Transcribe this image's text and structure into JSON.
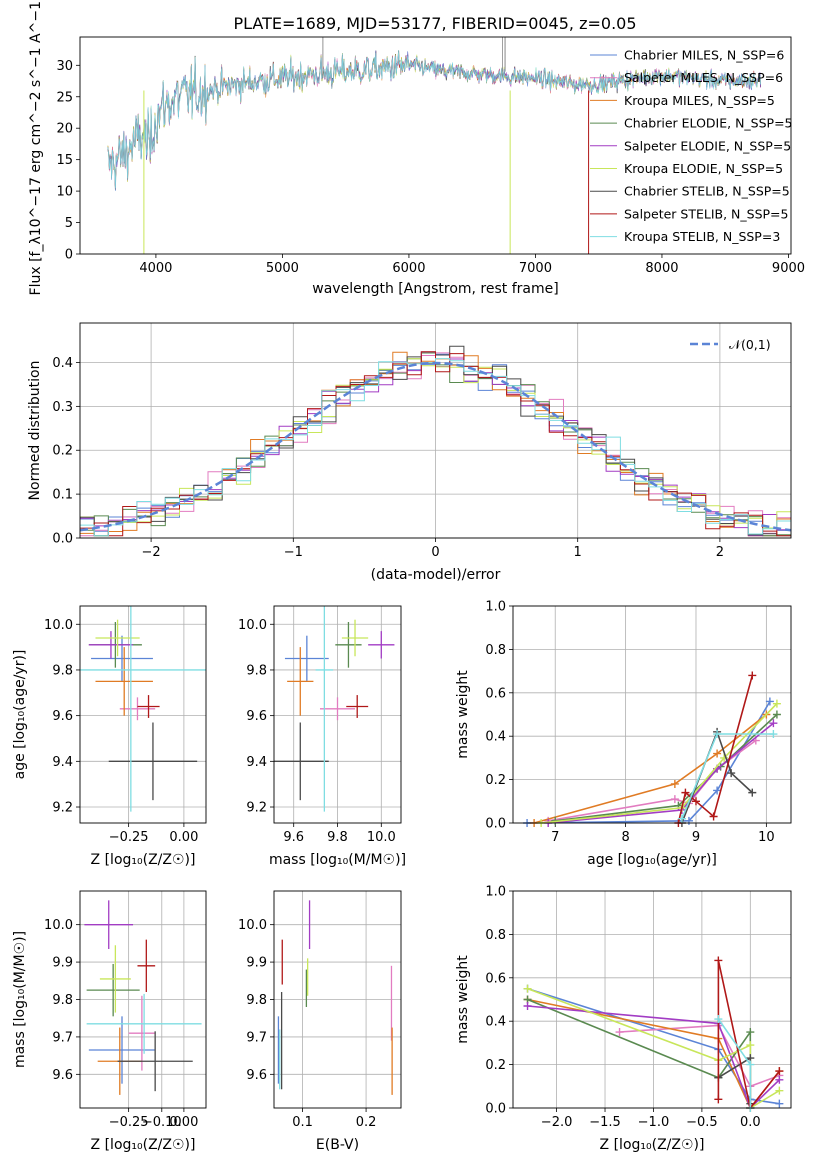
{
  "title": "PLATE=1689, MJD=53177, FIBERID=0045, z=0.05",
  "colors": {
    "chabrier_miles": "#5b84d6",
    "salpeter_miles": "#e27cc0",
    "kroupa_miles": "#e07b24",
    "chabrier_elodie": "#5a8a50",
    "salpeter_elodie": "#a23cc4",
    "kroupa_elodie": "#c8e65a",
    "chabrier_stelib": "#4a4a4a",
    "salpeter_stelib": "#b01818",
    "kroupa_stelib": "#7fdde2"
  },
  "chart_data": [
    {
      "id": "spectrum",
      "type": "line",
      "title": "PLATE=1689, MJD=53177, FIBERID=0045, z=0.05",
      "xlabel": "wavelength [Angstrom, rest frame]",
      "ylabel": "Flux [f_λ10^−17 erg cm^−2 s^−1 A^−1]",
      "xlim": [
        3400,
        9020
      ],
      "ylim": [
        0,
        34.5
      ],
      "xticks": [
        "4000",
        "5000",
        "6000",
        "7000",
        "8000",
        "9000"
      ],
      "yticks": [
        "0",
        "5",
        "10",
        "15",
        "20",
        "25",
        "30"
      ],
      "continuum": {
        "x": [
          3620,
          3700,
          3800,
          3900,
          3950,
          4000,
          4100,
          4200,
          4300,
          4500,
          4800,
          5000,
          5200,
          5500,
          5800,
          6000,
          6300,
          6600,
          7000,
          7300,
          7500,
          7800,
          8000,
          8200,
          8500,
          8780
        ],
        "y": [
          14,
          15,
          17,
          19,
          17,
          22,
          24,
          25,
          25.5,
          26.5,
          27.5,
          28,
          28.5,
          29,
          29.5,
          30,
          29,
          28.5,
          28,
          27,
          27,
          28,
          28.5,
          28,
          27.5,
          27.5
        ]
      },
      "legend_loc": "upper right",
      "series": [
        {
          "name": "Chabrier MILES, N_SSP=6",
          "color_key": "chabrier_miles"
        },
        {
          "name": "Salpeter MILES, N_SSP=6",
          "color_key": "salpeter_miles"
        },
        {
          "name": "Kroupa MILES, N_SSP=5",
          "color_key": "kroupa_miles"
        },
        {
          "name": "Chabrier ELODIE, N_SSP=5",
          "color_key": "chabrier_elodie"
        },
        {
          "name": "Salpeter ELODIE, N_SSP=5",
          "color_key": "salpeter_elodie"
        },
        {
          "name": "Kroupa ELODIE, N_SSP=5",
          "color_key": "kroupa_elodie"
        },
        {
          "name": "Chabrier STELIB, N_SSP=5",
          "color_key": "chabrier_stelib"
        },
        {
          "name": "Salpeter STELIB, N_SSP=5",
          "color_key": "salpeter_stelib"
        },
        {
          "name": "Kroupa STELIB, N_SSP=3",
          "color_key": "kroupa_stelib"
        }
      ]
    },
    {
      "id": "residuals",
      "type": "histogram",
      "xlabel": "(data-model)/error",
      "ylabel": "Normed distribution",
      "xlim": [
        -2.5,
        2.5
      ],
      "ylim": [
        0,
        0.49
      ],
      "xticks": [
        "−2",
        "−1",
        "0",
        "1",
        "2"
      ],
      "yticks": [
        "0.0",
        "0.1",
        "0.2",
        "0.3",
        "0.4"
      ],
      "bin_width": 0.1,
      "reference": {
        "name": "𝒩(0,1)",
        "mean": 0,
        "sigma": 1,
        "color": "#5b84d6"
      },
      "series_color_keys": [
        "chabrier_miles",
        "salpeter_miles",
        "kroupa_miles",
        "chabrier_elodie",
        "salpeter_elodie",
        "kroupa_elodie",
        "chabrier_stelib",
        "salpeter_stelib",
        "kroupa_stelib"
      ]
    },
    {
      "id": "age_vs_Z",
      "type": "errorbar",
      "xlabel": "Z [log₁₀(Z/Z☉)]",
      "ylabel": "age  [log₁₀(age/yr)]",
      "xlim": [
        -0.47,
        0.1
      ],
      "ylim": [
        9.13,
        10.08
      ],
      "xticks": [
        -0.25,
        0.0
      ],
      "xticklabels": [
        "−0.25",
        "0.00"
      ],
      "yticks": [
        9.2,
        9.4,
        9.6,
        9.8,
        10.0
      ],
      "yticklabels": [
        "9.2",
        "9.4",
        "9.6",
        "9.8",
        "10.0"
      ],
      "points": [
        {
          "c": "chabrier_miles",
          "x": -0.28,
          "xe": 0.14,
          "y": 9.85,
          "ye": 0.1
        },
        {
          "c": "salpeter_miles",
          "x": -0.21,
          "xe": 0.08,
          "y": 9.63,
          "ye": 0.05
        },
        {
          "c": "kroupa_miles",
          "x": -0.27,
          "xe": 0.13,
          "y": 9.75,
          "ye": 0.15
        },
        {
          "c": "chabrier_elodie",
          "x": -0.31,
          "xe": 0.12,
          "y": 9.91,
          "ye": 0.1
        },
        {
          "c": "salpeter_elodie",
          "x": -0.33,
          "xe": 0.1,
          "y": 9.91,
          "ye": 0.06
        },
        {
          "c": "kroupa_elodie",
          "x": -0.3,
          "xe": 0.1,
          "y": 9.94,
          "ye": 0.08
        },
        {
          "c": "chabrier_stelib",
          "x": -0.14,
          "xe": 0.2,
          "y": 9.4,
          "ye": 0.17
        },
        {
          "c": "salpeter_stelib",
          "x": -0.16,
          "xe": 0.05,
          "y": 9.64,
          "ye": 0.05
        },
        {
          "c": "kroupa_stelib",
          "x": -0.24,
          "xe": 0.34,
          "y": 9.8,
          "ye": 0.62
        }
      ]
    },
    {
      "id": "age_vs_mass",
      "type": "errorbar",
      "xlabel": "mass [log₁₀(M/M☉)]",
      "ylabel": "",
      "xlim": [
        9.51,
        10.09
      ],
      "ylim": [
        9.13,
        10.08
      ],
      "xticks": [
        9.6,
        9.8,
        10.0
      ],
      "xticklabels": [
        "9.6",
        "9.8",
        "10.0"
      ],
      "yticks": [
        9.2,
        9.4,
        9.6,
        9.8,
        10.0
      ],
      "yticklabels": [
        "9.2",
        "9.4",
        "9.6",
        "9.8",
        "10.0"
      ],
      "points": [
        {
          "c": "chabrier_miles",
          "x": 9.66,
          "xe": 0.1,
          "y": 9.85,
          "ye": 0.1
        },
        {
          "c": "salpeter_miles",
          "x": 9.8,
          "xe": 0.08,
          "y": 9.63,
          "ye": 0.05
        },
        {
          "c": "kroupa_miles",
          "x": 9.63,
          "xe": 0.06,
          "y": 9.75,
          "ye": 0.15
        },
        {
          "c": "chabrier_elodie",
          "x": 9.85,
          "xe": 0.06,
          "y": 9.91,
          "ye": 0.1
        },
        {
          "c": "salpeter_elodie",
          "x": 10.0,
          "xe": 0.06,
          "y": 9.91,
          "ye": 0.06
        },
        {
          "c": "kroupa_elodie",
          "x": 9.88,
          "xe": 0.06,
          "y": 9.94,
          "ye": 0.08
        },
        {
          "c": "chabrier_stelib",
          "x": 9.63,
          "xe": 0.13,
          "y": 9.4,
          "ye": 0.17
        },
        {
          "c": "salpeter_stelib",
          "x": 9.89,
          "xe": 0.05,
          "y": 9.64,
          "ye": 0.05
        },
        {
          "c": "kroupa_stelib",
          "x": 9.74,
          "xe": 0.04,
          "y": 9.8,
          "ye": 0.62
        }
      ]
    },
    {
      "id": "weight_vs_age",
      "type": "line",
      "xlabel": "age  [log₁₀(age/yr)]",
      "ylabel": "mass weight",
      "xlim": [
        6.4,
        10.35
      ],
      "ylim": [
        0,
        1.0
      ],
      "xticks": [
        7,
        8,
        9,
        10
      ],
      "xticklabels": [
        "7",
        "8",
        "9",
        "10"
      ],
      "yticks": [
        0,
        0.2,
        0.4,
        0.6,
        0.8,
        1.0
      ],
      "yticklabels": [
        "0.0",
        "0.2",
        "0.4",
        "0.6",
        "0.8",
        "1.0"
      ],
      "series": [
        {
          "c": "chabrier_miles",
          "pts": [
            [
              6.6,
              0.0
            ],
            [
              8.9,
              0.01
            ],
            [
              9.3,
              0.15
            ],
            [
              10.05,
              0.56
            ]
          ]
        },
        {
          "c": "salpeter_miles",
          "pts": [
            [
              6.9,
              0.01
            ],
            [
              8.7,
              0.11
            ],
            [
              8.9,
              0.09
            ],
            [
              9.3,
              0.25
            ],
            [
              9.85,
              0.38
            ]
          ]
        },
        {
          "c": "kroupa_miles",
          "pts": [
            [
              6.7,
              0.0
            ],
            [
              8.7,
              0.18
            ],
            [
              9.3,
              0.32
            ],
            [
              10.0,
              0.5
            ]
          ]
        },
        {
          "c": "chabrier_elodie",
          "pts": [
            [
              7.0,
              0.01
            ],
            [
              8.75,
              0.08
            ],
            [
              9.35,
              0.26
            ],
            [
              10.15,
              0.5
            ]
          ]
        },
        {
          "c": "salpeter_elodie",
          "pts": [
            [
              6.9,
              0.0
            ],
            [
              8.8,
              0.06
            ],
            [
              9.3,
              0.25
            ],
            [
              10.1,
              0.46
            ]
          ]
        },
        {
          "c": "kroupa_elodie",
          "pts": [
            [
              6.8,
              0.0
            ],
            [
              8.8,
              0.07
            ],
            [
              9.4,
              0.3
            ],
            [
              10.15,
              0.55
            ]
          ]
        },
        {
          "c": "chabrier_stelib",
          "pts": [
            [
              8.8,
              0.0
            ],
            [
              9.3,
              0.42
            ],
            [
              9.5,
              0.23
            ],
            [
              9.8,
              0.14
            ]
          ]
        },
        {
          "c": "salpeter_stelib",
          "pts": [
            [
              8.75,
              0.0
            ],
            [
              8.85,
              0.14
            ],
            [
              9.0,
              0.1
            ],
            [
              9.25,
              0.03
            ],
            [
              9.8,
              0.68
            ]
          ]
        },
        {
          "c": "kroupa_stelib",
          "pts": [
            [
              8.8,
              0.02
            ],
            [
              9.3,
              0.41
            ],
            [
              10.1,
              0.41
            ]
          ]
        }
      ]
    },
    {
      "id": "mass_vs_Z",
      "type": "errorbar",
      "xlabel": "Z [log₁₀(Z/Z☉)]",
      "ylabel": "mass [log₁₀(M/M☉)]",
      "xlim": [
        -0.47,
        0.1
      ],
      "ylim": [
        9.51,
        10.09
      ],
      "xticks": [
        -0.25,
        -0.1,
        0.0
      ],
      "xticklabels": [
        "−0.25",
        "−0.10",
        "0.00"
      ],
      "yticks": [
        9.6,
        9.7,
        9.8,
        9.9,
        10.0
      ],
      "yticklabels": [
        "9.6",
        "9.7",
        "9.8",
        "9.9",
        "10.0"
      ],
      "points": [
        {
          "c": "chabrier_miles",
          "x": -0.28,
          "xe": 0.15,
          "y": 9.665,
          "ye": 0.09
        },
        {
          "c": "salpeter_miles",
          "x": -0.19,
          "xe": 0.06,
          "y": 9.71,
          "ye": 0.1
        },
        {
          "c": "kroupa_miles",
          "x": -0.29,
          "xe": 0.1,
          "y": 9.635,
          "ye": 0.09
        },
        {
          "c": "chabrier_elodie",
          "x": -0.32,
          "xe": 0.12,
          "y": 9.825,
          "ye": 0.07
        },
        {
          "c": "salpeter_elodie",
          "x": -0.34,
          "xe": 0.11,
          "y": 10.0,
          "ye": 0.065
        },
        {
          "c": "kroupa_elodie",
          "x": -0.31,
          "xe": 0.07,
          "y": 9.855,
          "ye": 0.09
        },
        {
          "c": "chabrier_stelib",
          "x": -0.13,
          "xe": 0.17,
          "y": 9.635,
          "ye": 0.08
        },
        {
          "c": "salpeter_stelib",
          "x": -0.17,
          "xe": 0.04,
          "y": 9.89,
          "ye": 0.07
        },
        {
          "c": "kroupa_stelib",
          "x": -0.18,
          "xe": 0.26,
          "y": 9.735,
          "ye": 0.08
        }
      ]
    },
    {
      "id": "mass_vs_ebv",
      "type": "errorbar",
      "xlabel": "E(B-V)",
      "ylabel": "",
      "xlim": [
        0.055,
        0.255
      ],
      "ylim": [
        9.51,
        10.09
      ],
      "xticks": [
        0.1,
        0.2
      ],
      "xticklabels": [
        "0.1",
        "0.2"
      ],
      "yticks": [
        9.6,
        9.7,
        9.8,
        9.9,
        10.0
      ],
      "yticklabels": [
        "9.6",
        "9.7",
        "9.8",
        "9.9",
        "10.0"
      ],
      "points": [
        {
          "c": "chabrier_miles",
          "x": 0.062,
          "xe": 0.0,
          "y": 9.665,
          "ye": 0.09
        },
        {
          "c": "salpeter_miles",
          "x": 0.24,
          "xe": 0.0,
          "y": 9.79,
          "ye": 0.1
        },
        {
          "c": "kroupa_miles",
          "x": 0.241,
          "xe": 0.0,
          "y": 9.635,
          "ye": 0.09
        },
        {
          "c": "chabrier_elodie",
          "x": 0.106,
          "xe": 0.0,
          "y": 9.83,
          "ye": 0.05
        },
        {
          "c": "salpeter_elodie",
          "x": 0.111,
          "xe": 0.0,
          "y": 10.0,
          "ye": 0.065
        },
        {
          "c": "kroupa_elodie",
          "x": 0.108,
          "xe": 0.0,
          "y": 9.86,
          "ye": 0.05
        },
        {
          "c": "chabrier_stelib",
          "x": 0.067,
          "xe": 0.0,
          "y": 9.69,
          "ye": 0.13
        },
        {
          "c": "salpeter_stelib",
          "x": 0.068,
          "xe": 0.0,
          "y": 9.9,
          "ye": 0.06
        },
        {
          "c": "kroupa_stelib",
          "x": 0.064,
          "xe": 0.0,
          "y": 9.64,
          "ye": 0.08
        }
      ]
    },
    {
      "id": "weight_vs_Z",
      "type": "line",
      "xlabel": "Z [log₁₀(Z/Z☉)]",
      "ylabel": "mass weight",
      "xlim": [
        -2.45,
        0.42
      ],
      "ylim": [
        0,
        1.0
      ],
      "xticks": [
        -2.0,
        -1.5,
        -1.0,
        -0.5,
        0.0
      ],
      "xticklabels": [
        "−2.0",
        "−1.5",
        "−1.0",
        "−0.5",
        "0.0"
      ],
      "yticks": [
        0,
        0.2,
        0.4,
        0.6,
        0.8,
        1.0
      ],
      "yticklabels": [
        "0.0",
        "0.2",
        "0.4",
        "0.6",
        "0.8",
        "1.0"
      ],
      "series": [
        {
          "c": "chabrier_miles",
          "pts": [
            [
              -2.3,
              0.55
            ],
            [
              -0.33,
              0.27
            ],
            [
              0.0,
              0.04
            ],
            [
              0.3,
              0.02
            ]
          ]
        },
        {
          "c": "salpeter_miles",
          "pts": [
            [
              -1.35,
              0.35
            ],
            [
              -0.33,
              0.38
            ],
            [
              0.0,
              0.1
            ],
            [
              0.3,
              0.15
            ]
          ]
        },
        {
          "c": "kroupa_miles",
          "pts": [
            [
              -2.3,
              0.5
            ],
            [
              -0.33,
              0.32
            ],
            [
              0.0,
              0.0
            ],
            [
              0.3,
              0.17
            ]
          ]
        },
        {
          "c": "chabrier_elodie",
          "pts": [
            [
              -2.3,
              0.5
            ],
            [
              -0.33,
              0.14
            ],
            [
              0.0,
              0.35
            ],
            [
              0.0,
              0.0
            ]
          ]
        },
        {
          "c": "salpeter_elodie",
          "pts": [
            [
              -2.3,
              0.47
            ],
            [
              -0.33,
              0.39
            ],
            [
              0.0,
              0.0
            ],
            [
              0.3,
              0.13
            ]
          ]
        },
        {
          "c": "kroupa_elodie",
          "pts": [
            [
              -2.3,
              0.55
            ],
            [
              -0.33,
              0.22
            ],
            [
              0.0,
              0.29
            ],
            [
              0.0,
              0.0
            ],
            [
              0.3,
              0.08
            ]
          ]
        },
        {
          "c": "chabrier_stelib",
          "pts": [
            [
              -0.33,
              0.14
            ],
            [
              0.0,
              0.23
            ],
            [
              0.0,
              0.02
            ]
          ]
        },
        {
          "c": "salpeter_stelib",
          "pts": [
            [
              -0.33,
              0.04
            ],
            [
              -0.33,
              0.68
            ],
            [
              0.0,
              0.0
            ],
            [
              0.3,
              0.17
            ]
          ]
        },
        {
          "c": "kroupa_stelib",
          "pts": [
            [
              -0.33,
              0.41
            ],
            [
              0.0,
              0.2
            ],
            [
              0.0,
              0.0
            ]
          ]
        }
      ]
    }
  ]
}
